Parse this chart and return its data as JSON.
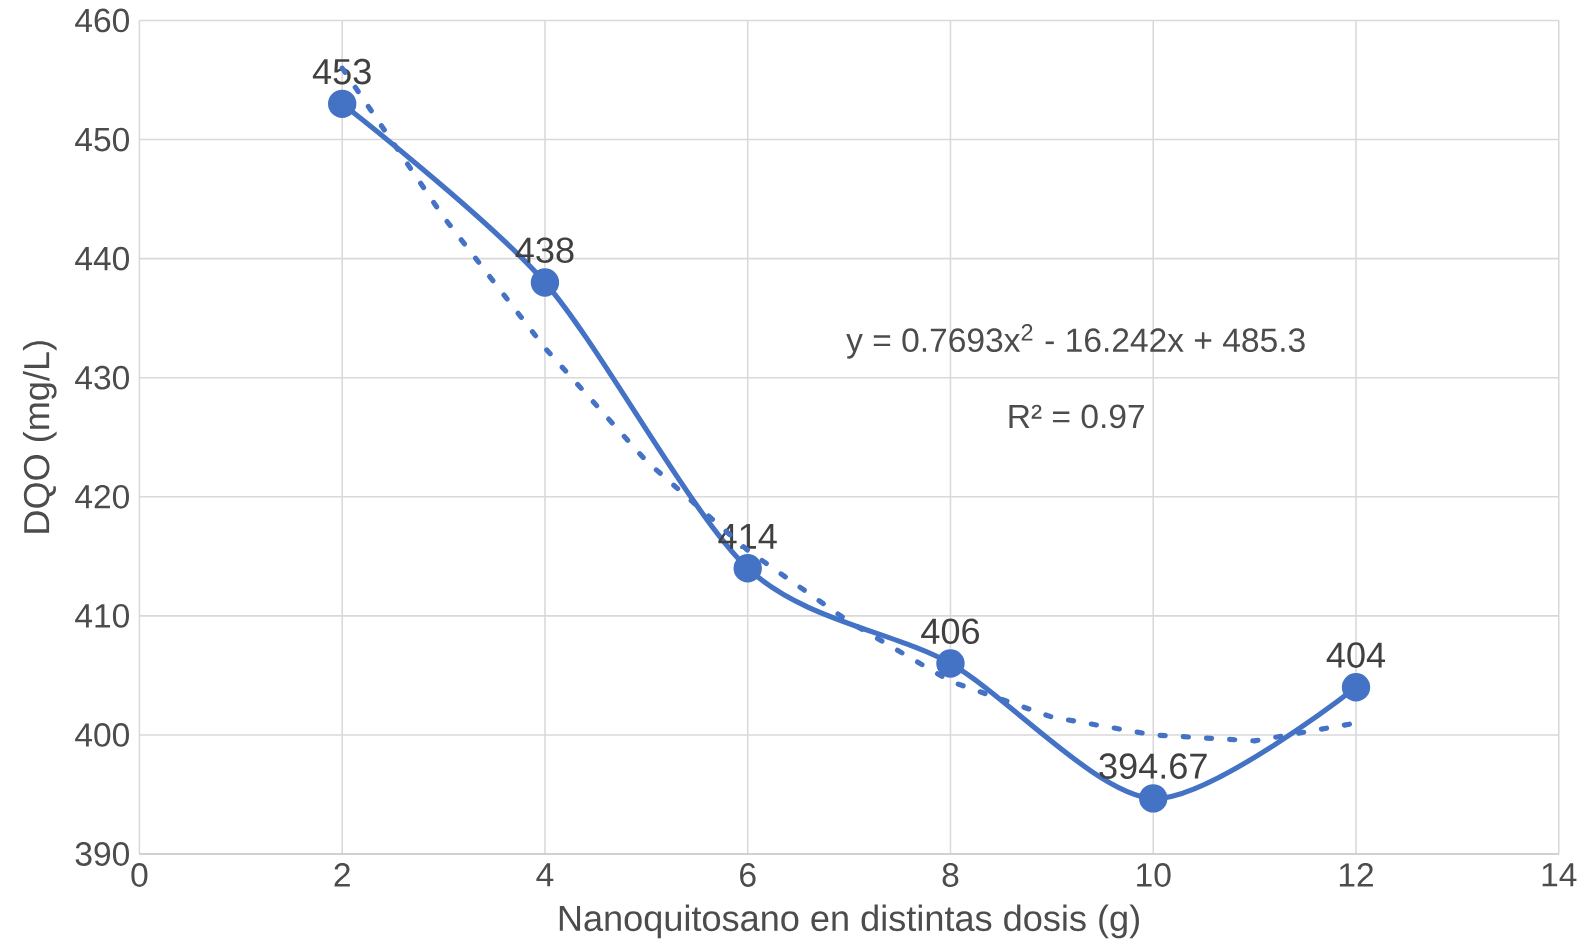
{
  "chart_data": {
    "type": "line",
    "xlabel": "Nanoquitosano en distintas dosis (g)",
    "ylabel": "DQO (mg/L)",
    "x": [
      2,
      4,
      6,
      8,
      10,
      12
    ],
    "series": [
      {
        "color": "#4472c4",
        "values": [
          453,
          438,
          414,
          406,
          394.67,
          404
        ],
        "marker": "circle",
        "line_style": "solid",
        "data_labels": true
      },
      {
        "type": "line",
        "color": "#4472c4",
        "x": [
          2,
          3,
          4,
          5,
          6,
          7,
          8,
          9,
          10,
          11,
          12
        ],
        "values": [
          456,
          443.5,
          432.5,
          423,
          415.5,
          409.5,
          404.5,
          401.5,
          400,
          399.5,
          401
        ],
        "marker": "none",
        "line_style": "dotted"
      }
    ],
    "annotations": [
      "y = 0.7693x$^{2}$ - 16.242x + 485.3",
      "R² = 0.97"
    ],
    "xlim": [
      0,
      14
    ],
    "xticks": [
      0,
      2,
      4,
      6,
      8,
      10,
      12,
      14
    ],
    "ylim": [
      390,
      460
    ],
    "yticks": [
      390,
      400,
      410,
      420,
      430,
      440,
      450,
      460
    ],
    "grid": true
  }
}
